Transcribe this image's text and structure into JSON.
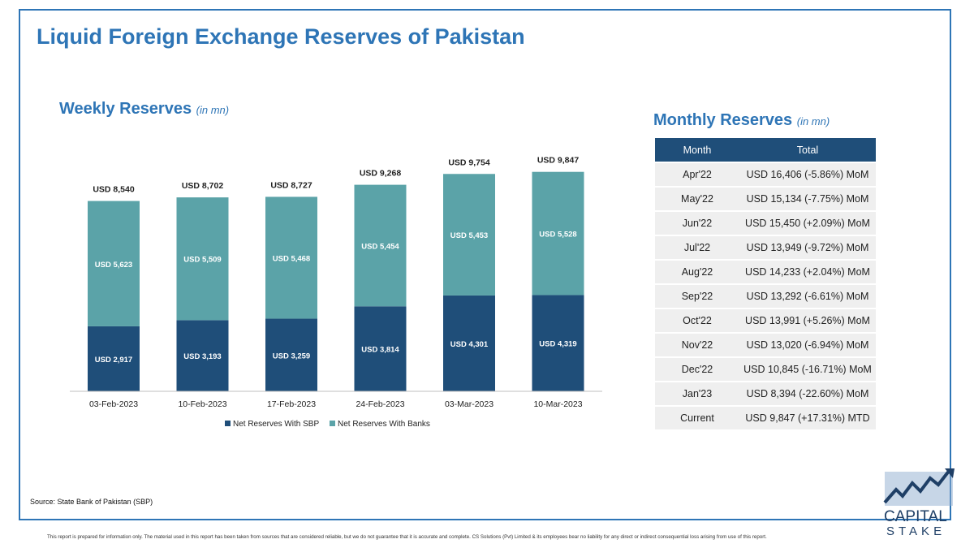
{
  "header": {
    "title": "Liquid Foreign Exchange Reserves of Pakistan"
  },
  "weekly": {
    "title": "Weekly Reserves",
    "unit": "(in mn)"
  },
  "monthly": {
    "title": "Monthly Reserves",
    "unit": "(in mn)",
    "columns": [
      "Month",
      "Total"
    ],
    "rows": [
      [
        "Apr'22",
        "USD 16,406 (-5.86%) MoM"
      ],
      [
        "May'22",
        "USD 15,134 (-7.75%) MoM"
      ],
      [
        "Jun'22",
        "USD 15,450 (+2.09%) MoM"
      ],
      [
        "Jul'22",
        "USD 13,949 (-9.72%) MoM"
      ],
      [
        "Aug'22",
        "USD 14,233 (+2.04%) MoM"
      ],
      [
        "Sep'22",
        "USD 13,292 (-6.61%) MoM"
      ],
      [
        "Oct'22",
        "USD 13,991 (+5.26%) MoM"
      ],
      [
        "Nov'22",
        "USD 13,020 (-6.94%) MoM"
      ],
      [
        "Dec'22",
        "USD 10,845 (-16.71%) MoM"
      ],
      [
        "Jan'23",
        "USD 8,394 (-22.60%) MoM"
      ],
      [
        "Current",
        "USD 9,847 (+17.31%) MTD"
      ]
    ]
  },
  "chart_data": {
    "type": "bar",
    "stacked": true,
    "categories": [
      "03-Feb-2023",
      "10-Feb-2023",
      "17-Feb-2023",
      "24-Feb-2023",
      "03-Mar-2023",
      "10-Mar-2023"
    ],
    "series": [
      {
        "name": "Net Reserves With SBP",
        "values": [
          2917,
          3193,
          3259,
          3814,
          4301,
          4319
        ],
        "labels": [
          "USD 2,917",
          "USD 3,193",
          "USD 3,259",
          "USD 3,814",
          "USD 4,301",
          "USD 4,319"
        ],
        "color": "#1f4e79"
      },
      {
        "name": "Net Reserves With Banks",
        "values": [
          5623,
          5509,
          5468,
          5454,
          5453,
          5528
        ],
        "labels": [
          "USD 5,623",
          "USD 5,509",
          "USD 5,468",
          "USD 5,454",
          "USD 5,453",
          "USD 5,528"
        ],
        "color": "#5ba3a8"
      }
    ],
    "totals": [
      8540,
      8702,
      8727,
      9268,
      9754,
      9847
    ],
    "total_labels": [
      "USD 8,540",
      "USD 8,702",
      "USD 8,727",
      "USD 9,268",
      "USD 9,754",
      "USD 9,847"
    ],
    "legend_position": "bottom",
    "grid": false
  },
  "footer": {
    "source": "Source: State Bank of Pakistan (SBP)",
    "disclaimer": "This report is prepared for information only. The material used in this report has been taken from sources that are considered reliable, but we do not guarantee that it is accurate and complete. CS Solutions (Pvt) Limited & its employees bear no liability for any direct or indirect consequential loss arising from use of this report.",
    "logo_line1": "CAPITAL",
    "logo_line2": "STAKE"
  },
  "colors": {
    "accent": "#2e75b6",
    "sbp": "#1f4e79",
    "banks": "#5ba3a8"
  }
}
